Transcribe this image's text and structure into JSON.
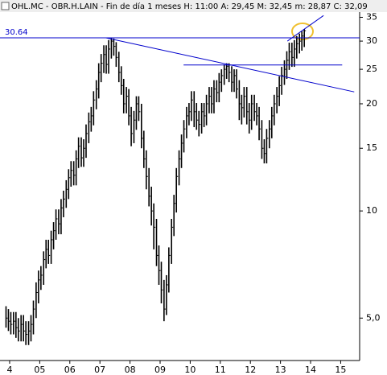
{
  "chart_data": {
    "type": "ohlc",
    "title": "OHL.MC - OBR.H.LAIN - Fin de día 1 meses H: 11:00 A: 29,45 M: 32,45 m: 28,87 C: 32,09",
    "log_scale": true,
    "color": "#000000",
    "line_color": "#0000cc",
    "xlim": [
      2003.68,
      2015.63
    ],
    "xticks": [
      {
        "value": 2004,
        "label": "4"
      },
      {
        "value": 2005,
        "label": "05"
      },
      {
        "value": 2006,
        "label": "06"
      },
      {
        "value": 2007,
        "label": "07"
      },
      {
        "value": 2008,
        "label": "08"
      },
      {
        "value": 2009,
        "label": "09"
      },
      {
        "value": 2010,
        "label": "10"
      },
      {
        "value": 2011,
        "label": "11"
      },
      {
        "value": 2012,
        "label": "12"
      },
      {
        "value": 2013,
        "label": "13"
      },
      {
        "value": 2014,
        "label": "14"
      },
      {
        "value": 2015,
        "label": "15"
      }
    ],
    "ylim": [
      3.8,
      36.2
    ],
    "yticks": [
      {
        "value": 5,
        "label": "5,0"
      },
      10,
      15,
      20,
      25,
      30,
      35
    ],
    "x": [
      2003.88,
      2003.96,
      2004.04,
      2004.13,
      2004.21,
      2004.29,
      2004.38,
      2004.46,
      2004.54,
      2004.63,
      2004.71,
      2004.79,
      2004.88,
      2004.96,
      2005.04,
      2005.13,
      2005.21,
      2005.29,
      2005.38,
      2005.46,
      2005.54,
      2005.63,
      2005.71,
      2005.79,
      2005.88,
      2005.96,
      2006.04,
      2006.13,
      2006.21,
      2006.29,
      2006.38,
      2006.46,
      2006.54,
      2006.63,
      2006.71,
      2006.79,
      2006.88,
      2006.96,
      2007.04,
      2007.13,
      2007.21,
      2007.29,
      2007.38,
      2007.46,
      2007.54,
      2007.63,
      2007.71,
      2007.79,
      2007.88,
      2007.96,
      2008.04,
      2008.13,
      2008.21,
      2008.29,
      2008.38,
      2008.46,
      2008.54,
      2008.63,
      2008.71,
      2008.79,
      2008.88,
      2008.96,
      2009.04,
      2009.13,
      2009.21,
      2009.29,
      2009.38,
      2009.46,
      2009.54,
      2009.63,
      2009.71,
      2009.79,
      2009.88,
      2009.96,
      2010.04,
      2010.13,
      2010.21,
      2010.29,
      2010.38,
      2010.46,
      2010.54,
      2010.63,
      2010.71,
      2010.79,
      2010.88,
      2010.96,
      2011.04,
      2011.13,
      2011.21,
      2011.29,
      2011.38,
      2011.46,
      2011.54,
      2011.63,
      2011.71,
      2011.79,
      2011.88,
      2011.96,
      2012.04,
      2012.13,
      2012.21,
      2012.29,
      2012.38,
      2012.46,
      2012.54,
      2012.63,
      2012.71,
      2012.79,
      2012.88,
      2012.96,
      2013.04,
      2013.13,
      2013.21,
      2013.29,
      2013.38,
      2013.46,
      2013.54,
      2013.63,
      2013.71,
      2013.79
    ],
    "high": [
      5.4,
      5.3,
      5.2,
      5.2,
      5.2,
      5.0,
      5.1,
      5.1,
      4.9,
      4.9,
      5.1,
      5.6,
      6.3,
      6.8,
      7.0,
      7.7,
      8.3,
      8.3,
      8.8,
      9.3,
      10.1,
      10.1,
      10.8,
      11.4,
      12.2,
      13.1,
      13.8,
      13.8,
      14.8,
      16.1,
      16.1,
      15.9,
      17.5,
      18.9,
      19.6,
      21.7,
      23.3,
      26.0,
      27.6,
      29.2,
      29.2,
      30.2,
      30.6,
      30.5,
      29.8,
      28.0,
      25.5,
      23.5,
      22.3,
      22.0,
      19.6,
      19.1,
      21.0,
      21.0,
      20.0,
      16.8,
      14.8,
      13.2,
      11.7,
      10.5,
      9.5,
      8.0,
      7.2,
      6.4,
      6.6,
      7.9,
      9.5,
      11.1,
      13.2,
      14.8,
      16.4,
      18.0,
      19.6,
      20.1,
      21.7,
      21.7,
      20.1,
      19.1,
      20.1,
      20.1,
      21.2,
      22.3,
      22.3,
      23.3,
      23.3,
      24.4,
      25.0,
      25.8,
      26.0,
      26.0,
      25.5,
      25.0,
      25.0,
      23.3,
      21.2,
      22.3,
      22.3,
      20.1,
      21.2,
      21.2,
      20.1,
      19.6,
      18.0,
      15.9,
      17.0,
      18.0,
      19.6,
      21.2,
      22.3,
      23.9,
      25.4,
      26.5,
      28.1,
      29.7,
      29.7,
      30.2,
      31.0,
      31.5,
      32.0,
      32.45
    ],
    "low": [
      4.7,
      4.6,
      4.5,
      4.5,
      4.4,
      4.3,
      4.3,
      4.3,
      4.2,
      4.2,
      4.3,
      4.5,
      5.0,
      5.5,
      6.0,
      6.2,
      6.9,
      7.1,
      7.1,
      7.8,
      8.3,
      8.6,
      8.6,
      9.6,
      10.2,
      10.8,
      11.7,
      11.8,
      11.8,
      13.2,
      13.3,
      13.3,
      14.1,
      15.5,
      16.7,
      17.4,
      19.3,
      20.7,
      23.0,
      24.4,
      24.3,
      24.3,
      26.8,
      27.3,
      25.4,
      23.0,
      21.2,
      18.8,
      18.8,
      17.4,
      15.2,
      15.5,
      16.9,
      17.9,
      15.0,
      13.2,
      11.5,
      10.3,
      9.1,
      7.8,
      7.0,
      6.2,
      5.5,
      4.9,
      5.1,
      5.9,
      7.1,
      8.5,
      9.9,
      11.8,
      13.2,
      14.6,
      16.0,
      17.4,
      17.9,
      17.2,
      16.9,
      16.2,
      16.5,
      17.2,
      17.4,
      18.8,
      18.8,
      18.8,
      20.2,
      20.2,
      21.6,
      22.6,
      23.5,
      23.0,
      21.6,
      21.6,
      20.7,
      18.0,
      17.5,
      18.3,
      17.5,
      16.5,
      16.9,
      17.9,
      17.4,
      15.8,
      14.0,
      13.6,
      13.6,
      15.0,
      16.0,
      17.4,
      18.8,
      19.7,
      21.2,
      22.6,
      23.5,
      24.9,
      25.4,
      25.4,
      26.8,
      27.7,
      28.2,
      28.87
    ],
    "close": [
      5.0,
      4.9,
      4.8,
      4.9,
      4.7,
      4.6,
      4.8,
      4.6,
      4.5,
      4.6,
      4.8,
      5.3,
      5.9,
      6.4,
      6.6,
      7.3,
      7.8,
      7.5,
      8.3,
      8.8,
      9.5,
      9.2,
      10.2,
      10.8,
      11.5,
      12.4,
      13.0,
      12.6,
      14.0,
      15.2,
      14.1,
      15.0,
      16.5,
      17.8,
      18.5,
      20.5,
      22.0,
      24.5,
      26.0,
      27.5,
      25.8,
      28.5,
      30.0,
      29.0,
      27.0,
      24.5,
      22.5,
      20.0,
      21.0,
      18.5,
      16.5,
      18.0,
      20.0,
      19.0,
      16.0,
      14.0,
      12.5,
      11.0,
      10.0,
      9.0,
      7.5,
      6.8,
      6.0,
      5.3,
      6.2,
      7.5,
      9.0,
      10.5,
      12.5,
      14.0,
      15.5,
      17.0,
      18.5,
      19.0,
      20.5,
      19.0,
      18.0,
      17.5,
      19.0,
      18.5,
      20.0,
      21.0,
      20.0,
      22.0,
      21.5,
      23.0,
      24.0,
      25.0,
      25.5,
      24.5,
      23.0,
      24.0,
      22.0,
      20.0,
      19.5,
      21.0,
      19.0,
      18.0,
      20.0,
      19.0,
      18.5,
      17.0,
      15.0,
      14.5,
      16.0,
      17.0,
      18.5,
      20.0,
      21.0,
      22.5,
      24.0,
      25.0,
      26.5,
      28.0,
      27.0,
      28.5,
      29.5,
      30.0,
      31.0,
      32.09
    ],
    "hline": {
      "y": 30.64
    },
    "trendlines": [
      {
        "x": [
          2009.78,
          2015.05
        ],
        "y": [
          25.7,
          25.7
        ]
      },
      {
        "x": [
          2007.2,
          2015.45
        ],
        "y": [
          30.64,
          21.6
        ]
      },
      {
        "x": [
          2013.23,
          2014.43
        ],
        "y": [
          30.0,
          35.4
        ]
      }
    ]
  }
}
